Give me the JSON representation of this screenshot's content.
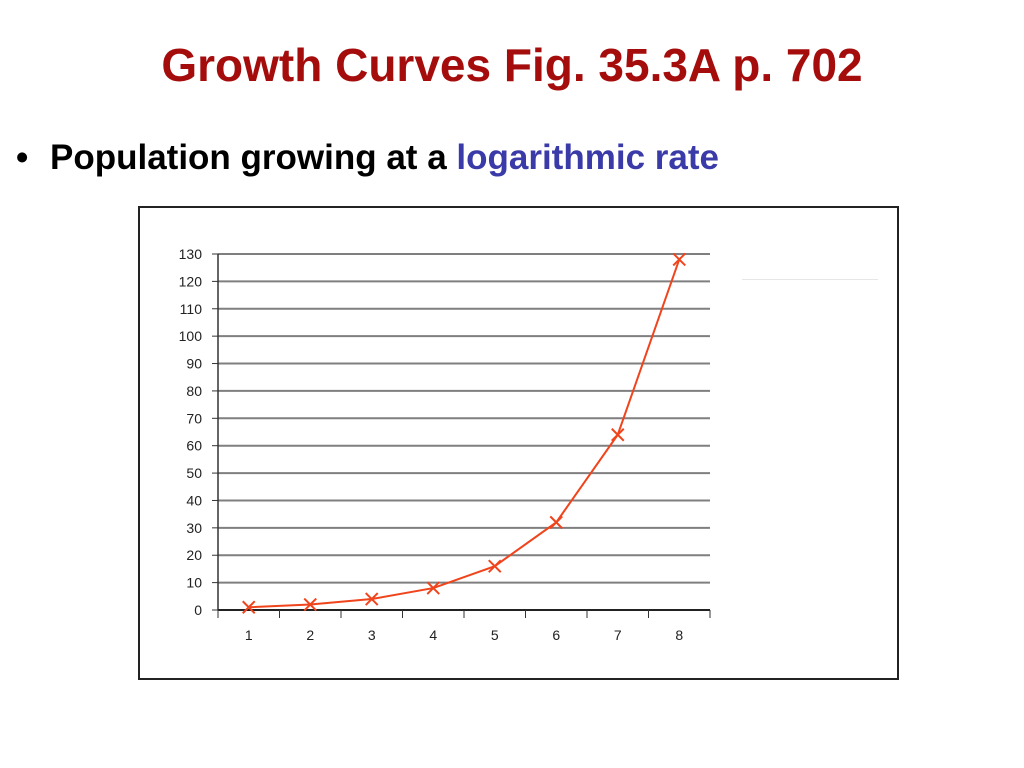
{
  "slide": {
    "title": "Growth Curves Fig. 35.3A p. 702",
    "bullet_prefix": "Population growing at a",
    "bullet_highlight": "logarithmic rate",
    "bullet_symbol": "•"
  },
  "colors": {
    "title": "#a50d0d",
    "highlight": "#3a3aa8",
    "series": "#f0441c",
    "grid": "#7f7f7f"
  },
  "chart_data": {
    "type": "line",
    "x": [
      1,
      2,
      3,
      4,
      5,
      6,
      7,
      8
    ],
    "categories": [
      "1",
      "2",
      "3",
      "4",
      "5",
      "6",
      "7",
      "8"
    ],
    "series": [
      {
        "values": [
          1,
          2,
          4,
          8,
          16,
          32,
          64,
          128
        ]
      }
    ],
    "ylim": [
      0,
      130
    ],
    "yticks": [
      0,
      10,
      20,
      30,
      40,
      50,
      60,
      70,
      80,
      90,
      100,
      110,
      120,
      130
    ],
    "grid": true,
    "marker": "x",
    "title": "",
    "xlabel": "",
    "ylabel": ""
  }
}
